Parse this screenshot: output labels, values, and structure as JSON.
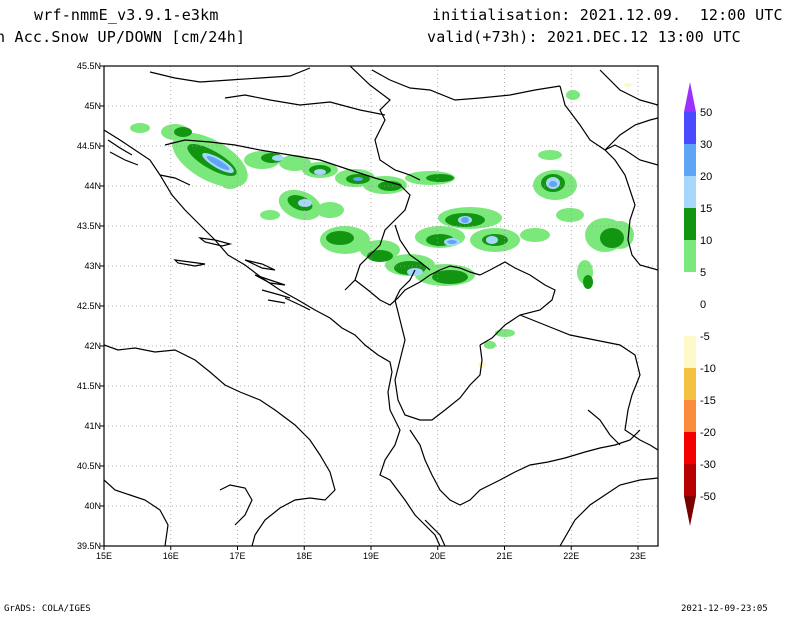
{
  "header": {
    "model": "wrf-nmmE_v3.9.1-e3km",
    "field": "n Acc.Snow UP/DOWN [cm/24h]",
    "init": "initialisation: 2021.12.09.  12:00 UTC",
    "valid": "valid(+73h): 2021.DEC.12 13:00 UTC"
  },
  "footer": {
    "left": "GrADS: COLA/IGES",
    "right": "2021-12-09-23:05"
  },
  "map": {
    "lat_labels": [
      "45.5N",
      "45N",
      "44.5N",
      "44N",
      "43.5N",
      "43N",
      "42.5N",
      "42N",
      "41.5N",
      "41N",
      "40.5N",
      "40N",
      "39.5N"
    ],
    "lon_labels": [
      "15E",
      "16E",
      "17E",
      "18E",
      "19E",
      "20E",
      "21E",
      "22E",
      "23E"
    ],
    "lat_range": [
      39.5,
      45.5
    ],
    "lon_range": [
      15.0,
      23.3
    ],
    "grid": "dotted"
  },
  "colorbar": {
    "levels": [
      "50",
      "30",
      "20",
      "15",
      "10",
      "5",
      "0",
      "-5",
      "-10",
      "-15",
      "-20",
      "-30",
      "-50"
    ],
    "colors": {
      "top_arrow": "#9b30ff",
      "c_50_30": "#4a4aff",
      "c_30_20": "#5ea6f5",
      "c_20_15": "#a6d6fa",
      "c_15_10": "#129612",
      "c_10_5": "#7be87b",
      "c_5_m5": "#ffffff",
      "c_m5_m10": "#fdf9c8",
      "c_m10_m15": "#f2c240",
      "c_m15_m20": "#fa8c3c",
      "c_m20_m30": "#f50000",
      "c_m30_m50": "#b80000",
      "bottom_arrow": "#7a0000"
    }
  }
}
